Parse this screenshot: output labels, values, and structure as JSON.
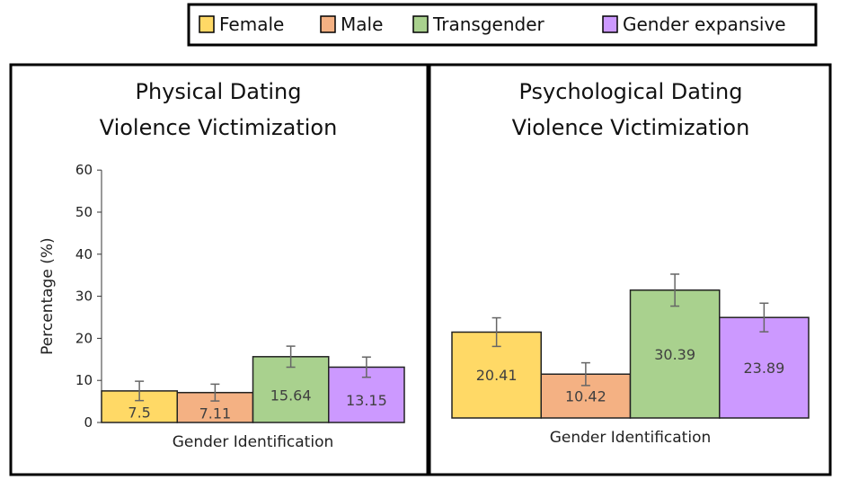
{
  "legend": [
    {
      "label": "Female",
      "color": "#FFD966"
    },
    {
      "label": "Male",
      "color": "#F4B183"
    },
    {
      "label": "Transgender",
      "color": "#A9D18E"
    },
    {
      "label": "Gender expansive",
      "color": "#CC99FF"
    }
  ],
  "chart_data": [
    {
      "type": "bar",
      "title": [
        "Physical Dating",
        "Violence Victimization"
      ],
      "xlabel": "Gender Identification",
      "ylabel": "Percentage (%)",
      "ylim": [
        0,
        60
      ],
      "yticks": [
        0,
        10,
        20,
        30,
        40,
        50,
        60
      ],
      "categories": [
        "Female",
        "Male",
        "Transgender",
        "Gender expansive"
      ],
      "values": [
        7.5,
        7.11,
        15.64,
        13.15
      ],
      "value_labels": [
        "7.5",
        "7.11",
        "15.64",
        "13.15"
      ],
      "error": [
        2.3,
        2.0,
        2.5,
        2.4
      ]
    },
    {
      "type": "bar",
      "title": [
        "Psychological Dating",
        "Violence Victimization"
      ],
      "xlabel": "Gender Identification",
      "ylim": [
        0,
        60
      ],
      "categories": [
        "Female",
        "Male",
        "Transgender",
        "Gender expansive"
      ],
      "values": [
        20.41,
        10.42,
        30.39,
        23.89
      ],
      "value_labels": [
        "20.41",
        "10.42",
        "30.39",
        "23.89"
      ],
      "error": [
        3.4,
        2.7,
        3.8,
        3.4
      ]
    }
  ]
}
